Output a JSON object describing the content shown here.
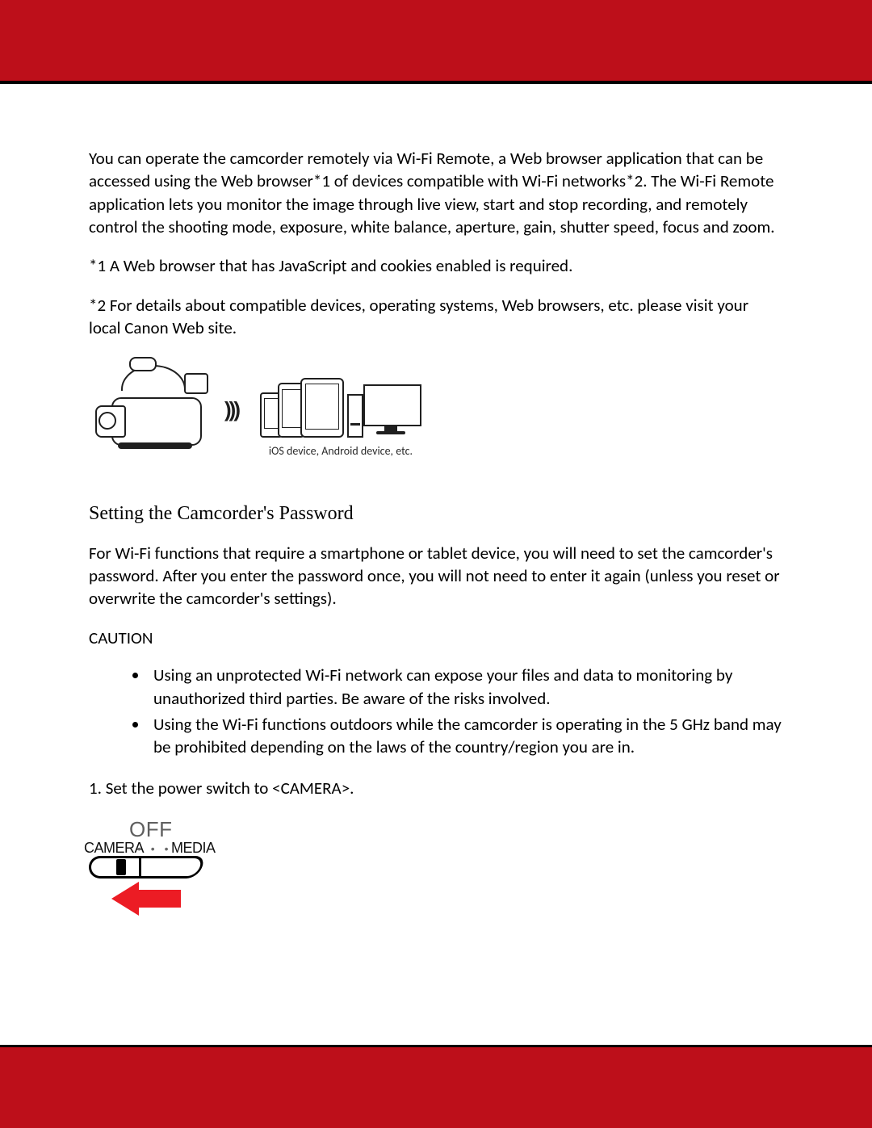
{
  "colors": {
    "band": "#bd0f1a",
    "band_rule": "#000000",
    "text": "#000000",
    "arrow": "#ec1c24",
    "off_label": "#5f5f5f",
    "outline": "#1f1f1f"
  },
  "typography": {
    "body_font": "Calibri",
    "body_size_pt": 16,
    "heading_font": "Georgia",
    "heading_size_pt": 18
  },
  "intro_paragraph": "You can operate the camcorder remotely via Wi-Fi Remote, a Web browser application that can be accessed using the Web browser*1 of devices compatible with Wi-Fi networks*2. The Wi-Fi Remote application lets you monitor the image through live view, start and stop recording, and remotely control the shooting mode, exposure, white balance, aperture, gain, shutter speed, focus and zoom.",
  "footnote1": "*1 A Web browser that has JavaScript and cookies enabled is required.",
  "footnote2": "*2 For details about compatible devices, operating systems, Web browsers, etc. please visit your local Canon Web site.",
  "illustration1_caption": "iOS device, Android device, etc.",
  "section_heading": "Setting the Camcorder's Password",
  "section_intro": "For Wi-Fi functions that require a smartphone or tablet device, you will need to set the camcorder's password. After you enter the password once, you will not need to enter it again (unless you reset or overwrite the camcorder's settings).",
  "caution_label": "CAUTION",
  "caution_bullets": [
    "Using an unprotected Wi-Fi network can expose your files and data to monitoring by unauthorized third parties. Be aware of the risks involved.",
    "Using the Wi-Fi functions outdoors while the camcorder is operating in the 5 GHz band may be prohibited depending on the laws of the country/region you are in."
  ],
  "step1": "1. Set the power switch to <CAMERA>.",
  "switch_labels": {
    "off": "OFF",
    "camera": "CAMERA",
    "media": "MEDIA",
    "dots": "• • •"
  }
}
